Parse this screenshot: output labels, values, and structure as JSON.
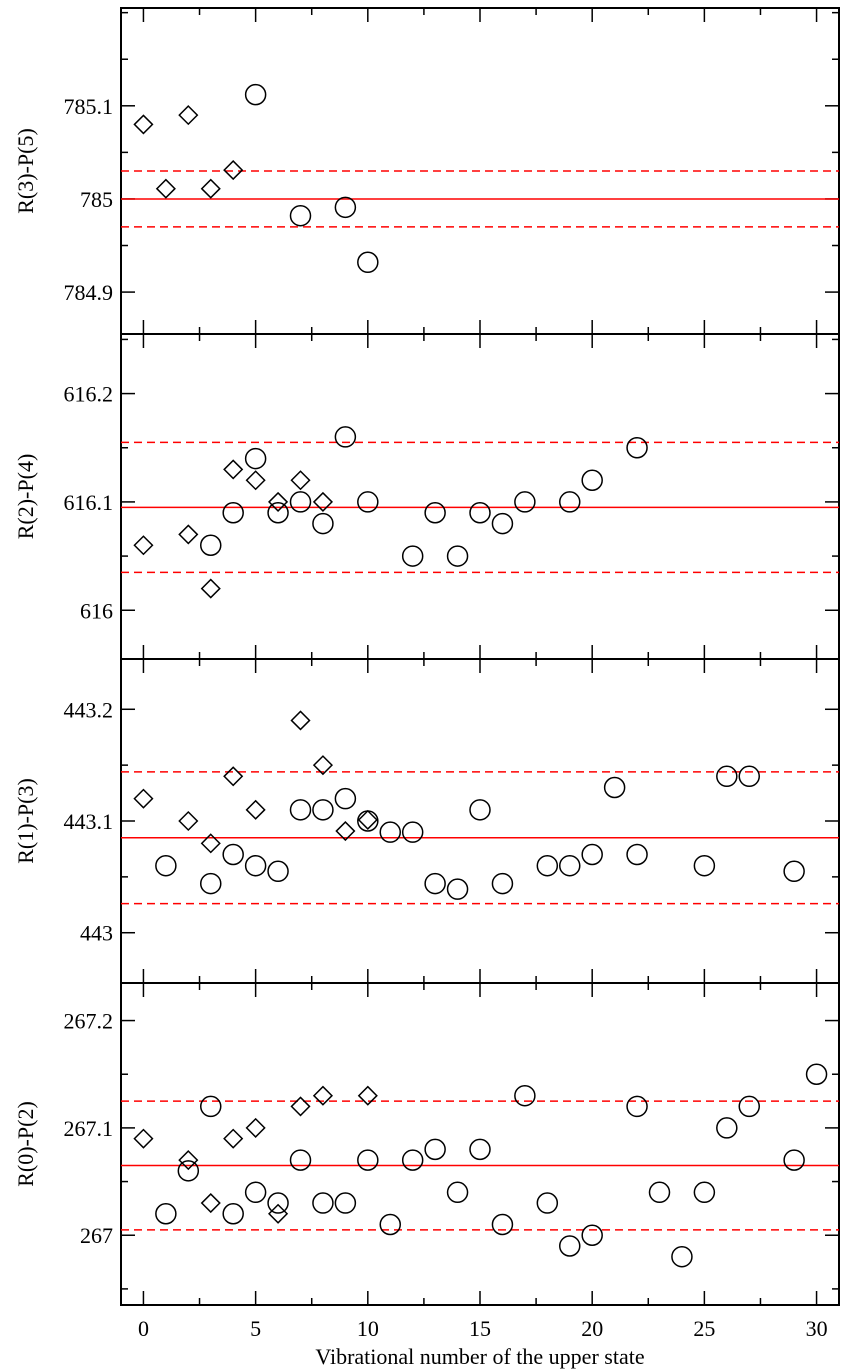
{
  "chart_data": {
    "type": "scatter",
    "xlabel": "Vibrational number of the upper state",
    "xlim": [
      -1,
      31
    ],
    "xticks": [
      0,
      5,
      10,
      15,
      20,
      25,
      30
    ],
    "xtick_labels": [
      "0",
      "5",
      "10",
      "15",
      "20",
      "25",
      "30"
    ],
    "colors": {
      "mean_line": "#ff0000",
      "marker": "#000000"
    },
    "panels": [
      {
        "ylabel": "R(3)-P(5)",
        "ylim": [
          784.855,
          785.205
        ],
        "yticks": [
          784.9,
          785,
          785.1
        ],
        "ytick_labels": [
          "784.9",
          "785",
          "785.1"
        ],
        "mean": 785.0,
        "sigma_lines": [
          784.97,
          785.03
        ],
        "series": [
          {
            "marker": "diamond",
            "points": [
              [
                0,
                785.08
              ],
              [
                1,
                785.011
              ],
              [
                2,
                785.09
              ],
              [
                3,
                785.011
              ],
              [
                4,
                785.031
              ]
            ]
          },
          {
            "marker": "circle",
            "points": [
              [
                5,
                785.112
              ],
              [
                7,
                784.982
              ],
              [
                9,
                784.991
              ],
              [
                10,
                784.932
              ]
            ]
          }
        ]
      },
      {
        "ylabel": "R(2)-P(4)",
        "ylim": [
          615.955,
          616.255
        ],
        "yticks": [
          616,
          616.1,
          616.2
        ],
        "ytick_labels": [
          "616",
          "616.1",
          "616.2"
        ],
        "mean": 616.095,
        "sigma_lines": [
          616.035,
          616.155
        ],
        "series": [
          {
            "marker": "diamond",
            "points": [
              [
                0,
                616.06
              ],
              [
                2,
                616.07
              ],
              [
                3,
                616.02
              ],
              [
                4,
                616.13
              ],
              [
                5,
                616.12
              ],
              [
                6,
                616.1
              ],
              [
                7,
                616.12
              ],
              [
                8,
                616.1
              ]
            ]
          },
          {
            "marker": "circle",
            "points": [
              [
                3,
                616.06
              ],
              [
                4,
                616.09
              ],
              [
                5,
                616.14
              ],
              [
                6,
                616.09
              ],
              [
                7,
                616.1
              ],
              [
                8,
                616.08
              ],
              [
                9,
                616.16
              ],
              [
                10,
                616.1
              ],
              [
                12,
                616.05
              ],
              [
                13,
                616.09
              ],
              [
                14,
                616.05
              ],
              [
                15,
                616.09
              ],
              [
                16,
                616.08
              ],
              [
                17,
                616.1
              ],
              [
                19,
                616.1
              ],
              [
                20,
                616.12
              ],
              [
                22,
                616.15
              ]
            ]
          }
        ]
      },
      {
        "ylabel": "R(1)-P(3)",
        "ylim": [
          442.955,
          443.245
        ],
        "yticks": [
          443,
          443.1,
          443.2
        ],
        "ytick_labels": [
          "443",
          "443.1",
          "443.2"
        ],
        "mean": 443.085,
        "sigma_lines": [
          443.026,
          443.144
        ],
        "series": [
          {
            "marker": "diamond",
            "points": [
              [
                0,
                443.12
              ],
              [
                2,
                443.1
              ],
              [
                3,
                443.08
              ],
              [
                4,
                443.14
              ],
              [
                5,
                443.11
              ],
              [
                7,
                443.19
              ],
              [
                8,
                443.15
              ],
              [
                9,
                443.091
              ],
              [
                10,
                443.101
              ]
            ]
          },
          {
            "marker": "circle",
            "points": [
              [
                1,
                443.06
              ],
              [
                3,
                443.044
              ],
              [
                4,
                443.07
              ],
              [
                5,
                443.06
              ],
              [
                6,
                443.055
              ],
              [
                7,
                443.11
              ],
              [
                8,
                443.11
              ],
              [
                9,
                443.12
              ],
              [
                10,
                443.1
              ],
              [
                11,
                443.09
              ],
              [
                12,
                443.09
              ],
              [
                13,
                443.044
              ],
              [
                14,
                443.039
              ],
              [
                15,
                443.11
              ],
              [
                16,
                443.044
              ],
              [
                18,
                443.06
              ],
              [
                19,
                443.06
              ],
              [
                20,
                443.07
              ],
              [
                21,
                443.13
              ],
              [
                22,
                443.07
              ],
              [
                25,
                443.06
              ],
              [
                26,
                443.14
              ],
              [
                27,
                443.14
              ],
              [
                29,
                443.055
              ]
            ]
          }
        ]
      },
      {
        "ylabel": "R(0)-P(2)",
        "ylim": [
          266.935,
          267.235
        ],
        "yticks": [
          267,
          267.1,
          267.2
        ],
        "ytick_labels": [
          "267",
          "267.1",
          "267.2"
        ],
        "mean": 267.065,
        "sigma_lines": [
          267.005,
          267.125
        ],
        "series": [
          {
            "marker": "diamond",
            "points": [
              [
                0,
                267.09
              ],
              [
                2,
                267.07
              ],
              [
                3,
                267.03
              ],
              [
                4,
                267.09
              ],
              [
                5,
                267.1
              ],
              [
                6,
                267.02
              ],
              [
                7,
                267.12
              ],
              [
                8,
                267.13
              ],
              [
                10,
                267.13
              ]
            ]
          },
          {
            "marker": "circle",
            "points": [
              [
                1,
                267.02
              ],
              [
                2,
                267.06
              ],
              [
                3,
                267.12
              ],
              [
                4,
                267.02
              ],
              [
                5,
                267.04
              ],
              [
                6,
                267.03
              ],
              [
                7,
                267.07
              ],
              [
                8,
                267.03
              ],
              [
                9,
                267.03
              ],
              [
                10,
                267.07
              ],
              [
                11,
                267.01
              ],
              [
                12,
                267.07
              ],
              [
                13,
                267.08
              ],
              [
                14,
                267.04
              ],
              [
                15,
                267.08
              ],
              [
                16,
                267.01
              ],
              [
                17,
                267.13
              ],
              [
                18,
                267.03
              ],
              [
                19,
                266.99
              ],
              [
                20,
                267.0
              ],
              [
                22,
                267.12
              ],
              [
                23,
                267.04
              ],
              [
                24,
                266.98
              ],
              [
                25,
                267.04
              ],
              [
                26,
                267.1
              ],
              [
                27,
                267.12
              ],
              [
                29,
                267.07
              ],
              [
                30,
                267.15
              ]
            ]
          }
        ]
      }
    ]
  }
}
